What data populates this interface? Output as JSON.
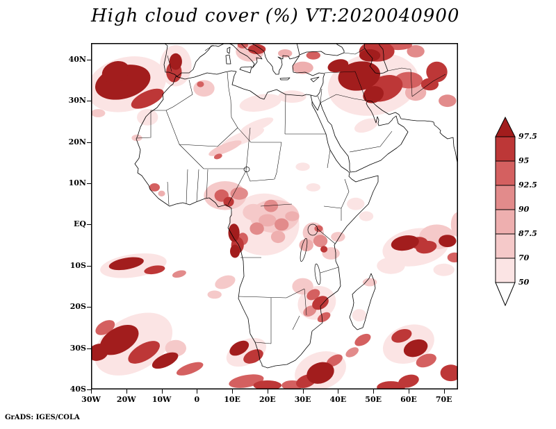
{
  "footer": {
    "stamp": "GrADS: IGES/COLA"
  },
  "chart_data": {
    "type": "heatmap",
    "title": "High cloud cover (%) VT:2020040900",
    "variable": "High cloud cover",
    "units": "%",
    "valid_time": "2020040900",
    "grid": false,
    "legend_position": "right",
    "projection": {
      "lon_min": -30,
      "lon_max": 74,
      "lat_min": -40,
      "lat_max": 44
    },
    "axes": {
      "lon_ticks": [
        {
          "lon": -30,
          "label": "30W"
        },
        {
          "lon": -20,
          "label": "20W"
        },
        {
          "lon": -10,
          "label": "10W"
        },
        {
          "lon": 0,
          "label": "0"
        },
        {
          "lon": 10,
          "label": "10E"
        },
        {
          "lon": 20,
          "label": "20E"
        },
        {
          "lon": 30,
          "label": "30E"
        },
        {
          "lon": 40,
          "label": "40E"
        },
        {
          "lon": 50,
          "label": "50E"
        },
        {
          "lon": 60,
          "label": "60E"
        },
        {
          "lon": 70,
          "label": "70E"
        }
      ],
      "lat_ticks": [
        {
          "lat": 40,
          "label": "40N"
        },
        {
          "lat": 30,
          "label": "30N"
        },
        {
          "lat": 20,
          "label": "20N"
        },
        {
          "lat": 10,
          "label": "10N"
        },
        {
          "lat": 0,
          "label": "EQ"
        },
        {
          "lat": -10,
          "label": "10S"
        },
        {
          "lat": -20,
          "label": "20S"
        },
        {
          "lat": -30,
          "label": "30S"
        },
        {
          "lat": -40,
          "label": "40S"
        }
      ]
    },
    "colorbar": {
      "levels": [
        50,
        70,
        87.5,
        90,
        92.5,
        95,
        97.5
      ],
      "labels": [
        "97.5",
        "95",
        "92.5",
        "90",
        "87.5",
        "70",
        "50"
      ],
      "colors": [
        "#ffffff",
        "#fbe4e4",
        "#f5c9c9",
        "#eeafaf",
        "#e28b8b",
        "#d46060",
        "#bd3737",
        "#a21d1d"
      ]
    },
    "annotation": "GrADS: IGES/COLA",
    "features_format": [
      "lon",
      "lat",
      "rx_deg",
      "ry_deg",
      "rotation_deg",
      "level_index"
    ],
    "features": [
      [
        -20,
        34,
        11.5,
        6.5,
        -15,
        1
      ],
      [
        -6,
        38.5,
        4.5,
        5,
        0,
        1
      ],
      [
        50,
        34,
        13,
        7.5,
        -10,
        1
      ],
      [
        18,
        29.5,
        6,
        2,
        -10,
        1
      ],
      [
        27,
        31,
        4,
        1.5,
        0,
        1
      ],
      [
        13,
        21,
        6.5,
        1.4,
        -22,
        1
      ],
      [
        17,
        24,
        5,
        1.2,
        -22,
        1
      ],
      [
        30,
        14,
        2,
        1,
        0,
        1
      ],
      [
        33,
        9,
        2,
        1,
        0,
        1
      ],
      [
        19,
        0,
        10,
        7.5,
        0,
        1
      ],
      [
        45,
        5,
        2.5,
        1.5,
        0,
        1
      ],
      [
        48,
        2,
        2,
        1.2,
        0,
        1
      ],
      [
        62,
        -5.5,
        9.5,
        4.5,
        -10,
        1
      ],
      [
        55,
        -10,
        4,
        2,
        0,
        1
      ],
      [
        -18,
        -10,
        9.5,
        2.8,
        -8,
        1
      ],
      [
        -18,
        -29,
        12,
        6.5,
        -30,
        1
      ],
      [
        35,
        -35.5,
        7.5,
        4.5,
        -20,
        1
      ],
      [
        60,
        -29,
        7.5,
        4.5,
        -20,
        1
      ],
      [
        34,
        -19,
        5.5,
        4,
        -20,
        1
      ],
      [
        14,
        -31,
        6,
        3,
        -25,
        1
      ],
      [
        -14,
        26,
        3,
        2,
        0,
        1
      ],
      [
        48,
        24,
        3.5,
        1.5,
        -20,
        1
      ],
      [
        46,
        -22,
        2,
        1.5,
        0,
        1
      ],
      [
        70,
        -11,
        3,
        1.5,
        0,
        1
      ],
      [
        2,
        33,
        3,
        2,
        0,
        2
      ],
      [
        8,
        18.5,
        5,
        1.1,
        -22,
        2
      ],
      [
        22,
        2,
        7,
        4,
        0,
        2
      ],
      [
        16,
        3,
        3,
        2,
        0,
        2
      ],
      [
        33,
        -2,
        3,
        2.5,
        0,
        2
      ],
      [
        38,
        -7,
        2.5,
        1.5,
        0,
        2
      ],
      [
        40,
        -3,
        2,
        1.2,
        0,
        2
      ],
      [
        8,
        7,
        6,
        3.5,
        0,
        2
      ],
      [
        68,
        -3,
        5,
        3,
        0,
        2
      ],
      [
        8,
        -14,
        3,
        1.5,
        -20,
        2
      ],
      [
        30,
        -15,
        3,
        2,
        0,
        2
      ],
      [
        -6,
        -30,
        3,
        2,
        0,
        2
      ],
      [
        49,
        -14,
        2,
        1,
        0,
        2
      ],
      [
        15,
        42,
        4,
        2.5,
        0,
        2
      ],
      [
        -17,
        21,
        1.5,
        0.8,
        0,
        2
      ],
      [
        74,
        0,
        2,
        3,
        0,
        2
      ],
      [
        5,
        -17,
        2,
        1,
        0,
        2
      ],
      [
        -28,
        27,
        2,
        1,
        0,
        2
      ],
      [
        62,
        32,
        3,
        2,
        0,
        3
      ],
      [
        20,
        1,
        2.5,
        1.5,
        0,
        3
      ],
      [
        27,
        2,
        2,
        1.2,
        0,
        3
      ],
      [
        23,
        -3,
        2,
        1.5,
        0,
        3
      ],
      [
        31,
        -5,
        2,
        1.5,
        0,
        3
      ],
      [
        -10,
        7.5,
        1,
        0.7,
        0,
        3
      ],
      [
        30,
        38,
        3,
        1.5,
        0,
        3
      ],
      [
        25,
        41.5,
        2,
        1,
        0,
        3
      ],
      [
        12,
        7.5,
        2.5,
        1.5,
        0,
        4
      ],
      [
        17,
        -1,
        2,
        1.5,
        0,
        4
      ],
      [
        24,
        0,
        2,
        1.5,
        0,
        4
      ],
      [
        21,
        4.5,
        2,
        1.5,
        0,
        4
      ],
      [
        35,
        -4,
        2,
        1.5,
        0,
        4
      ],
      [
        -5,
        -12,
        2,
        0.8,
        -15,
        4
      ],
      [
        71,
        30,
        2.5,
        1.5,
        0,
        4
      ],
      [
        32,
        -21,
        2,
        1.2,
        -30,
        4
      ],
      [
        44,
        -31,
        2,
        1,
        -30,
        4
      ],
      [
        62,
        42,
        2.5,
        1.5,
        0,
        4
      ],
      [
        -26,
        -25,
        3,
        1.5,
        -30,
        5
      ],
      [
        6,
        16.5,
        1.2,
        0.6,
        -20,
        5
      ],
      [
        -12,
        9,
        1.5,
        1,
        0,
        5
      ],
      [
        7,
        7,
        2,
        1.5,
        0,
        5
      ],
      [
        13,
        -3.5,
        1.5,
        1.5,
        0,
        5
      ],
      [
        34.5,
        -1,
        1.2,
        0.8,
        0,
        5
      ],
      [
        33,
        -17,
        2,
        1.2,
        -30,
        5
      ],
      [
        36,
        -22.5,
        2,
        1,
        -30,
        5
      ],
      [
        39,
        -33,
        2.5,
        1.2,
        -30,
        5
      ],
      [
        47,
        -28,
        2.5,
        1.2,
        -30,
        5
      ],
      [
        65,
        -33,
        3,
        1.5,
        -20,
        5
      ],
      [
        73,
        -8,
        2,
        1.2,
        0,
        5
      ],
      [
        -2,
        -35,
        4,
        1.2,
        -20,
        5
      ],
      [
        14,
        -38,
        5,
        1.5,
        -10,
        5
      ],
      [
        60,
        35,
        4,
        2,
        0,
        5
      ],
      [
        13,
        43.5,
        1.5,
        0.8,
        0,
        5
      ],
      [
        33,
        41,
        2,
        1,
        0,
        5
      ],
      [
        1,
        34,
        1,
        0.7,
        0,
        5
      ],
      [
        57,
        43.5,
        4,
        1.2,
        0,
        5
      ],
      [
        27,
        -39,
        3,
        1.2,
        0,
        5
      ],
      [
        -14,
        30.5,
        5,
        1.8,
        -25,
        6
      ],
      [
        -6.5,
        37,
        2.2,
        2.5,
        0,
        6
      ],
      [
        17,
        42.5,
        2.5,
        1.2,
        0,
        6
      ],
      [
        53,
        33,
        5.5,
        3,
        -20,
        6
      ],
      [
        68,
        37,
        3,
        2.5,
        0,
        6
      ],
      [
        9,
        5.5,
        1.5,
        1.2,
        0,
        6
      ],
      [
        11.5,
        -5,
        1.8,
        2,
        0,
        6
      ],
      [
        36,
        -6,
        1,
        0.8,
        0,
        6
      ],
      [
        -12,
        -11,
        3,
        1,
        -10,
        6
      ],
      [
        35,
        -19,
        2.5,
        1.5,
        -30,
        6
      ],
      [
        -15,
        -31,
        5,
        2,
        -30,
        6
      ],
      [
        16,
        -32,
        3,
        1.5,
        -25,
        6
      ],
      [
        20,
        -39,
        4,
        1.2,
        0,
        6
      ],
      [
        31,
        -38,
        3,
        1.5,
        -20,
        6
      ],
      [
        58,
        -27,
        3,
        1.5,
        -20,
        6
      ],
      [
        63,
        -4.5,
        2.5,
        1.5,
        0,
        6
      ],
      [
        65,
        -5.5,
        3,
        1.5,
        -10,
        6
      ],
      [
        72,
        -36,
        3,
        2,
        0,
        6
      ],
      [
        66,
        34,
        2.5,
        1.5,
        0,
        6
      ],
      [
        60,
        -38,
        3,
        1.5,
        -15,
        6
      ],
      [
        51,
        42,
        5,
        2.5,
        0,
        6
      ],
      [
        55,
        -39.5,
        4,
        1.5,
        0,
        6
      ],
      [
        -21,
        34.5,
        8,
        4,
        -15,
        7
      ],
      [
        -23,
        37,
        4,
        2.5,
        -20,
        7
      ],
      [
        -6,
        39.5,
        1.8,
        2,
        0,
        7
      ],
      [
        46,
        36,
        6,
        3.5,
        -10,
        7
      ],
      [
        40,
        38.5,
        3,
        1.5,
        -15,
        7
      ],
      [
        50,
        31.5,
        3,
        2,
        -20,
        7
      ],
      [
        10.5,
        -2,
        1.6,
        2.2,
        0,
        7
      ],
      [
        10.8,
        -6.5,
        1.4,
        1.6,
        0,
        7
      ],
      [
        -20,
        -9.5,
        5,
        1.4,
        -10,
        7
      ],
      [
        59,
        -4.5,
        4,
        1.8,
        -10,
        7
      ],
      [
        71,
        -4,
        2.5,
        1.5,
        0,
        7
      ],
      [
        -22,
        -28,
        6,
        3,
        -30,
        7
      ],
      [
        -9,
        -33,
        4,
        1.5,
        -25,
        7
      ],
      [
        12,
        -30,
        3,
        1.5,
        -30,
        7
      ],
      [
        35,
        -36,
        4,
        2.5,
        -20,
        7
      ],
      [
        62,
        -30,
        3.5,
        2,
        -20,
        7
      ],
      [
        -28,
        -31,
        3,
        2,
        -20,
        7
      ],
      [
        49,
        41,
        3,
        1.5,
        0,
        7
      ]
    ]
  }
}
